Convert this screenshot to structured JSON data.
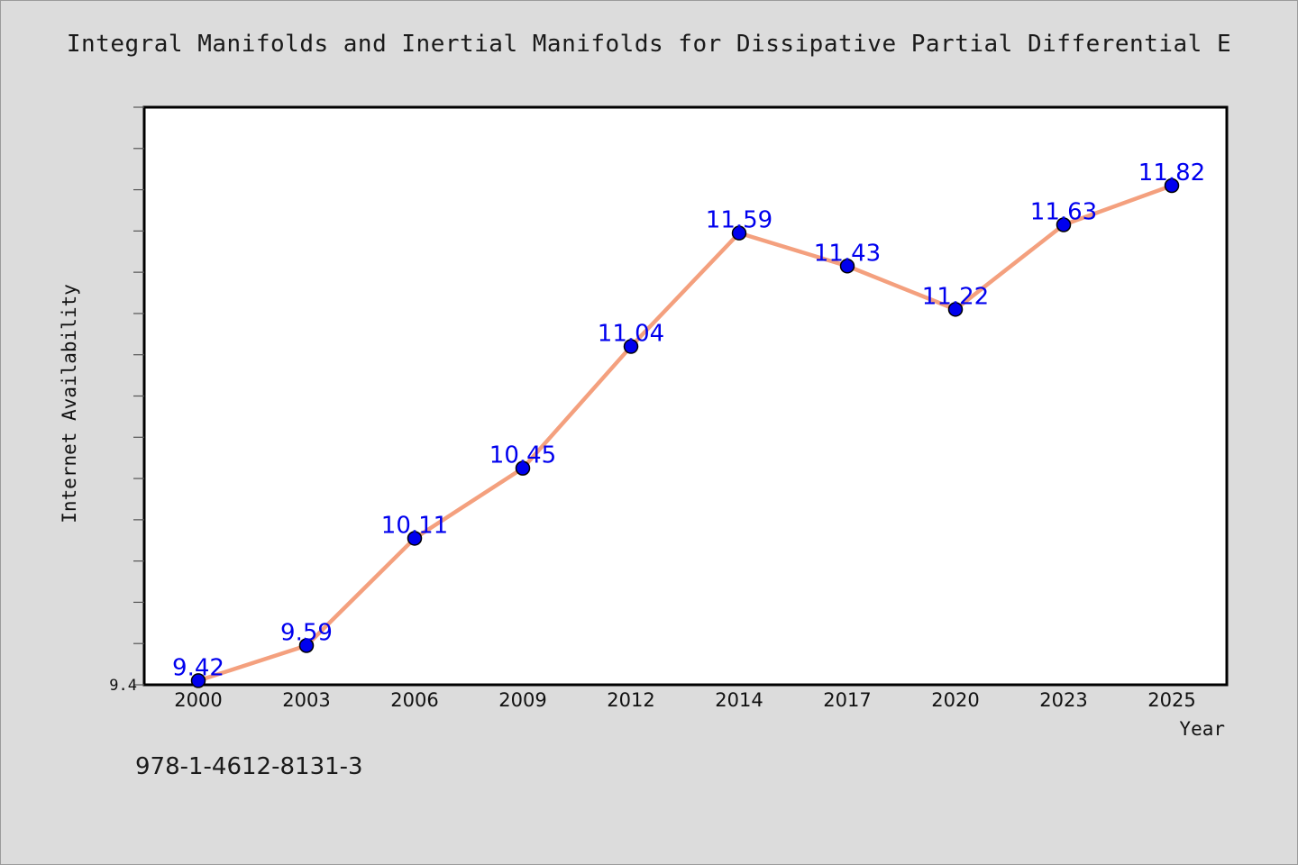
{
  "title": "Integral Manifolds and Inertial Manifolds for Dissipative Partial Differential E",
  "isbn": "978-1-4612-8131-3",
  "chart_data": {
    "type": "line",
    "title": "Integral Manifolds and Inertial Manifolds for Dissipative Partial Differential E",
    "xlabel": "Year",
    "ylabel": "Internet Availability",
    "categories": [
      "2000",
      "2003",
      "2006",
      "2009",
      "2012",
      "2014",
      "2017",
      "2020",
      "2023",
      "2025"
    ],
    "series": [
      {
        "values": [
          9.42,
          9.59,
          10.11,
          10.45,
          11.04,
          11.59,
          11.43,
          11.22,
          11.63,
          11.82
        ],
        "labels": [
          "9.42",
          "9.59",
          "10.11",
          "10.45",
          "11.04",
          "11.59",
          "11.43",
          "11.22",
          "11.63",
          "11.82"
        ]
      }
    ],
    "y_tick_labels": [
      "9.4"
    ],
    "ylim": [
      9.4,
      12.2
    ],
    "grid": false,
    "line_color": "#f4a07e",
    "marker_color": "#0000ee",
    "label_color": "#0000ee"
  }
}
